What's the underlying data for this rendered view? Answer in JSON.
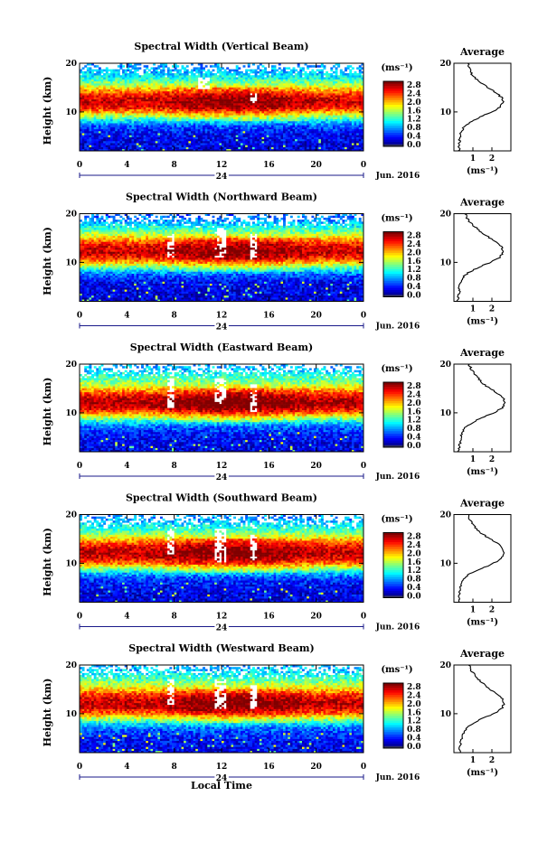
{
  "figure": {
    "xlabel": "Local Time",
    "height_label": "Height (km)",
    "average_title": "Average",
    "unit": "(ms⁻¹)",
    "date": "Jun. 2016",
    "day_marker": "24",
    "colorscale_note": "jet: 0.0 dark blue to 2.8 red",
    "nodata_color": "#ffffff"
  },
  "chart_data": [
    {
      "type": "heatmap",
      "title": "Spectral Width (Vertical Beam)",
      "x_ticks": [
        "0",
        "4",
        "8",
        "12",
        "16",
        "20",
        "0"
      ],
      "xlim": [
        0,
        24
      ],
      "y_ticks": [
        "10",
        "20"
      ],
      "ylim": [
        2,
        20
      ],
      "colorbar_ticks": [
        "0.0",
        "0.4",
        "0.8",
        "1.2",
        "1.6",
        "2.0",
        "2.4",
        "2.8"
      ],
      "colorbar_range": [
        0,
        2.8
      ],
      "profile_height_km": [
        2,
        3,
        4,
        5,
        6,
        7,
        8,
        9,
        10,
        11,
        12,
        13,
        14,
        15,
        16,
        17,
        18,
        19,
        20
      ],
      "profile_width": [
        0.25,
        0.28,
        0.3,
        0.32,
        0.4,
        0.55,
        0.9,
        1.4,
        2.0,
        2.45,
        2.6,
        2.5,
        2.2,
        1.8,
        1.4,
        1.1,
        0.9,
        0.8,
        0.75
      ],
      "avg_x_ticks": [
        "1",
        "2"
      ],
      "avg_xlim": [
        0,
        3
      ],
      "avg_y_ticks": [
        "10",
        "20"
      ],
      "gaps": [
        [
          10,
          11,
          14.5,
          17
        ],
        [
          14.5,
          15,
          12,
          14
        ]
      ]
    },
    {
      "type": "heatmap",
      "title": "Spectral Width (Northward Beam)",
      "x_ticks": [
        "0",
        "4",
        "8",
        "12",
        "16",
        "20",
        "0"
      ],
      "xlim": [
        0,
        24
      ],
      "y_ticks": [
        "10",
        "20"
      ],
      "ylim": [
        2,
        20
      ],
      "colorbar_ticks": [
        "0.0",
        "0.4",
        "0.8",
        "1.2",
        "1.6",
        "2.0",
        "2.4",
        "2.8"
      ],
      "colorbar_range": [
        0,
        2.8
      ],
      "profile_height_km": [
        2,
        3,
        4,
        5,
        6,
        7,
        8,
        9,
        10,
        11,
        12,
        13,
        14,
        15,
        16,
        17,
        18,
        19,
        20
      ],
      "profile_width": [
        0.2,
        0.25,
        0.28,
        0.3,
        0.35,
        0.5,
        0.8,
        1.3,
        1.9,
        2.4,
        2.6,
        2.55,
        2.3,
        1.9,
        1.5,
        1.2,
        0.9,
        0.7,
        0.6
      ],
      "avg_x_ticks": [
        "1",
        "2"
      ],
      "avg_xlim": [
        0,
        3
      ],
      "avg_y_ticks": [
        "10",
        "20"
      ],
      "gaps": [
        [
          7.5,
          8,
          11,
          16
        ],
        [
          11.5,
          12.3,
          11,
          17
        ],
        [
          14.5,
          15,
          10.5,
          16
        ]
      ]
    },
    {
      "type": "heatmap",
      "title": "Spectral Width (Eastward Beam)",
      "x_ticks": [
        "0",
        "4",
        "8",
        "12",
        "16",
        "20",
        "0"
      ],
      "xlim": [
        0,
        24
      ],
      "y_ticks": [
        "10",
        "20"
      ],
      "ylim": [
        2,
        20
      ],
      "colorbar_ticks": [
        "0.0",
        "0.4",
        "0.8",
        "1.2",
        "1.6",
        "2.0",
        "2.4",
        "2.8"
      ],
      "colorbar_range": [
        0,
        2.8
      ],
      "profile_height_km": [
        2,
        3,
        4,
        5,
        6,
        7,
        8,
        9,
        10,
        11,
        12,
        13,
        14,
        15,
        16,
        17,
        18,
        19,
        20
      ],
      "profile_width": [
        0.25,
        0.3,
        0.32,
        0.35,
        0.45,
        0.6,
        0.95,
        1.5,
        2.1,
        2.55,
        2.7,
        2.6,
        2.3,
        1.9,
        1.5,
        1.3,
        1.1,
        0.9,
        0.8
      ],
      "avg_x_ticks": [
        "1",
        "2"
      ],
      "avg_xlim": [
        0,
        3
      ],
      "avg_y_ticks": [
        "10",
        "20"
      ],
      "gaps": [
        [
          7.5,
          8,
          11,
          17
        ],
        [
          11.5,
          12.3,
          12,
          17
        ],
        [
          14.5,
          15,
          10,
          16
        ]
      ]
    },
    {
      "type": "heatmap",
      "title": "Spectral Width (Southward Beam)",
      "x_ticks": [
        "0",
        "4",
        "8",
        "12",
        "16",
        "20",
        "0"
      ],
      "xlim": [
        0,
        24
      ],
      "y_ticks": [
        "10",
        "20"
      ],
      "ylim": [
        2,
        20
      ],
      "colorbar_ticks": [
        "0.0",
        "0.4",
        "0.8",
        "1.2",
        "1.6",
        "2.0",
        "2.4",
        "2.8"
      ],
      "colorbar_range": [
        0,
        2.8
      ],
      "profile_height_km": [
        2,
        3,
        4,
        5,
        6,
        7,
        8,
        9,
        10,
        11,
        12,
        13,
        14,
        15,
        16,
        17,
        18,
        19,
        20
      ],
      "profile_width": [
        0.25,
        0.28,
        0.3,
        0.33,
        0.4,
        0.55,
        0.9,
        1.5,
        2.1,
        2.5,
        2.65,
        2.55,
        2.3,
        1.9,
        1.5,
        1.2,
        1.0,
        0.8,
        0.75
      ],
      "avg_x_ticks": [
        "1",
        "2"
      ],
      "avg_xlim": [
        0,
        3
      ],
      "avg_y_ticks": [
        "10",
        "20"
      ],
      "gaps": [
        [
          7.5,
          8,
          12,
          17
        ],
        [
          11.5,
          12.3,
          10,
          17
        ],
        [
          14.5,
          15,
          10.5,
          16
        ]
      ]
    },
    {
      "type": "heatmap",
      "title": "Spectral Width (Westward Beam)",
      "x_ticks": [
        "0",
        "4",
        "8",
        "12",
        "16",
        "20",
        "0"
      ],
      "xlim": [
        0,
        24
      ],
      "y_ticks": [
        "10",
        "20"
      ],
      "ylim": [
        2,
        20
      ],
      "colorbar_ticks": [
        "0.0",
        "0.4",
        "0.8",
        "1.2",
        "1.6",
        "2.0",
        "2.4",
        "2.8"
      ],
      "colorbar_range": [
        0,
        2.8
      ],
      "profile_height_km": [
        2,
        3,
        4,
        5,
        6,
        7,
        8,
        9,
        10,
        11,
        12,
        13,
        14,
        15,
        16,
        17,
        18,
        19,
        20
      ],
      "profile_width": [
        0.3,
        0.32,
        0.35,
        0.4,
        0.5,
        0.65,
        1.0,
        1.5,
        2.1,
        2.5,
        2.65,
        2.55,
        2.3,
        1.9,
        1.6,
        1.3,
        1.1,
        0.9,
        0.8
      ],
      "avg_x_ticks": [
        "1",
        "2"
      ],
      "avg_xlim": [
        0,
        3
      ],
      "avg_y_ticks": [
        "10",
        "20"
      ],
      "gaps": [
        [
          7.5,
          8,
          12,
          17
        ],
        [
          11.5,
          12.3,
          11,
          17
        ],
        [
          14.5,
          15,
          11,
          16
        ]
      ]
    }
  ]
}
